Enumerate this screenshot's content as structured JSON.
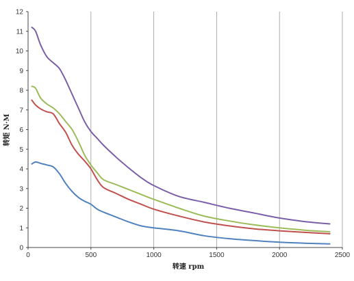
{
  "chart_data": {
    "type": "line",
    "title": "",
    "xlabel": "转速 rpm",
    "ylabel": "转矩 N·M",
    "xlim": [
      0,
      2500
    ],
    "ylim": [
      0,
      12
    ],
    "xticks": [
      0,
      500,
      1000,
      1500,
      2000,
      2500
    ],
    "yticks": [
      0,
      1,
      2,
      3,
      4,
      5,
      6,
      7,
      8,
      9,
      10,
      11,
      12
    ],
    "grid": "vertical",
    "legend": "none",
    "series": [
      {
        "color": "#7a5ea8",
        "x": [
          30,
          60,
          100,
          150,
          200,
          250,
          300,
          350,
          400,
          450,
          500,
          550,
          600,
          700,
          800,
          900,
          1000,
          1200,
          1400,
          1600,
          1800,
          2000,
          2200,
          2400
        ],
        "y": [
          11.2,
          11.0,
          10.3,
          9.7,
          9.4,
          9.1,
          8.5,
          7.8,
          7.1,
          6.4,
          5.9,
          5.55,
          5.2,
          4.6,
          4.05,
          3.55,
          3.15,
          2.6,
          2.3,
          2.0,
          1.75,
          1.5,
          1.32,
          1.2
        ]
      },
      {
        "color": "#9bbb59",
        "x": [
          30,
          60,
          100,
          150,
          200,
          250,
          300,
          350,
          400,
          450,
          500,
          550,
          600,
          700,
          800,
          900,
          1000,
          1200,
          1400,
          1600,
          1800,
          2000,
          2200,
          2400
        ],
        "y": [
          8.2,
          8.1,
          7.6,
          7.3,
          7.1,
          6.8,
          6.4,
          6.0,
          5.4,
          4.7,
          4.2,
          3.8,
          3.45,
          3.2,
          2.95,
          2.7,
          2.45,
          2.0,
          1.6,
          1.35,
          1.15,
          1.0,
          0.88,
          0.8
        ]
      },
      {
        "color": "#c0504d",
        "x": [
          30,
          60,
          100,
          150,
          200,
          250,
          300,
          350,
          400,
          450,
          500,
          550,
          600,
          700,
          800,
          900,
          1000,
          1200,
          1400,
          1600,
          1800,
          2000,
          2200,
          2400
        ],
        "y": [
          7.5,
          7.25,
          7.05,
          6.9,
          6.8,
          6.3,
          5.85,
          5.2,
          4.75,
          4.4,
          4.0,
          3.45,
          3.05,
          2.75,
          2.45,
          2.2,
          1.95,
          1.6,
          1.3,
          1.1,
          0.95,
          0.85,
          0.77,
          0.7
        ]
      },
      {
        "color": "#4f81bd",
        "x": [
          30,
          60,
          100,
          150,
          200,
          250,
          300,
          350,
          400,
          450,
          500,
          550,
          600,
          700,
          800,
          900,
          1000,
          1200,
          1400,
          1600,
          1800,
          2000,
          2200,
          2400
        ],
        "y": [
          4.25,
          4.35,
          4.28,
          4.2,
          4.1,
          3.75,
          3.25,
          2.85,
          2.55,
          2.35,
          2.2,
          1.95,
          1.8,
          1.55,
          1.3,
          1.1,
          1.0,
          0.85,
          0.6,
          0.45,
          0.35,
          0.27,
          0.22,
          0.18
        ]
      }
    ]
  }
}
